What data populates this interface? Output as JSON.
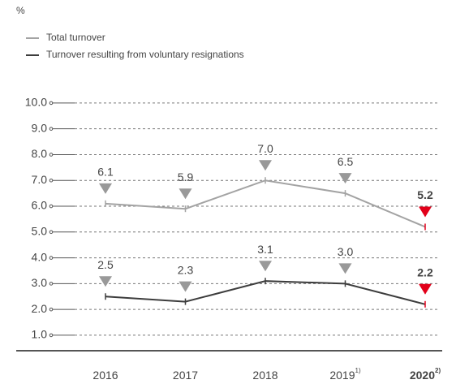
{
  "chart_data": {
    "type": "line",
    "subtitle": "%",
    "categories": [
      "2016",
      "2017",
      "2018",
      "2019",
      "2020"
    ],
    "category_notes": [
      null,
      null,
      null,
      "1)",
      "2)"
    ],
    "series": [
      {
        "name": "Total turnover",
        "color": "#a3a3a3",
        "values": [
          6.1,
          5.9,
          7.0,
          6.5,
          5.2
        ],
        "value_labels": [
          "6.1",
          "5.9",
          "7.0",
          "6.5",
          "5.2"
        ]
      },
      {
        "name": "Turnover resulting from voluntary resignations",
        "color": "#3d3d3d",
        "values": [
          2.5,
          2.3,
          3.1,
          3.0,
          2.2
        ],
        "value_labels": [
          "2.5",
          "2.3",
          "3.1",
          "3.0",
          "2.2"
        ]
      }
    ],
    "highlight_color": "#e2001a",
    "ylim": [
      0.4,
      10.5
    ],
    "yticks": [
      {
        "value": 1,
        "label": "1.0"
      },
      {
        "value": 2,
        "label": "2.0"
      },
      {
        "value": 3,
        "label": "3.0"
      },
      {
        "value": 4,
        "label": "4.0"
      },
      {
        "value": 5,
        "label": "5.0"
      },
      {
        "value": 6,
        "label": "6.0"
      },
      {
        "value": 7,
        "label": "7.0"
      },
      {
        "value": 8,
        "label": "8.0"
      },
      {
        "value": 9,
        "label": "9.0"
      },
      {
        "value": 10,
        "label": "10.0"
      }
    ],
    "grid": true
  }
}
